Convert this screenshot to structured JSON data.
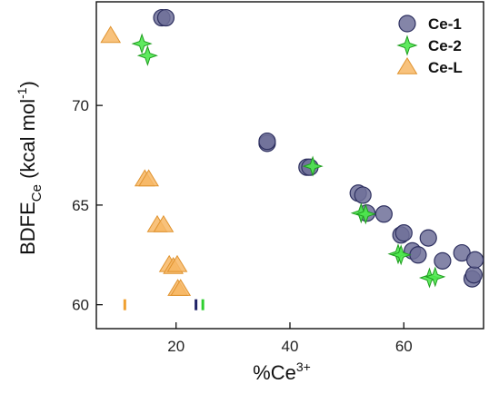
{
  "chart_data": {
    "type": "scatter",
    "xlabel": "%Ce",
    "xlabel_sup": "3+",
    "ylabel": "BDFE",
    "ylabel_sub": "Ce",
    "ylabel_units": " (kcal mol",
    "ylabel_units_sup": "-1",
    "ylabel_units_close": ")",
    "xlim": [
      6,
      74
    ],
    "ylim": [
      58.8,
      75.2
    ],
    "x_ticks": [
      20,
      40,
      60
    ],
    "y_ticks": [
      60,
      65,
      70
    ],
    "x_tick_labels": [
      "20",
      "40",
      "60"
    ],
    "y_tick_labels": [
      "60",
      "65",
      "70"
    ],
    "grid": false,
    "legend_position": "top-right",
    "colors": {
      "ce1_fill": "#6e7099",
      "ce1_stroke": "#2e3060",
      "ce2_fill": "#4ee84e",
      "ce2_stroke": "#1f9e1f",
      "cel_fill": "#f7b765",
      "cel_stroke": "#e0932f",
      "marker_ce1": "#1f2266",
      "marker_ce2": "#2fcf2f",
      "marker_cel": "#f0a030"
    },
    "series": [
      {
        "name": "Ce-1",
        "marker": "circle",
        "x": [
          17.5,
          18.2,
          36.0,
          36.0,
          43.0,
          43.5,
          52.0,
          52.8,
          53.5,
          56.5,
          59.5,
          60.0,
          61.5,
          62.5,
          64.3,
          66.8,
          70.2,
          72.0,
          72.3,
          72.5
        ],
        "y": [
          74.4,
          74.4,
          68.1,
          68.2,
          66.9,
          66.9,
          65.6,
          65.5,
          64.6,
          64.55,
          63.5,
          63.6,
          62.7,
          62.5,
          63.35,
          62.2,
          62.6,
          61.3,
          61.5,
          62.25
        ]
      },
      {
        "name": "Ce-2",
        "marker": "star",
        "x": [
          14.0,
          15.0,
          44.0,
          52.5,
          53.3,
          59.0,
          59.5,
          64.5,
          65.5
        ],
        "y": [
          73.1,
          72.5,
          66.95,
          64.6,
          64.55,
          62.55,
          62.5,
          61.35,
          61.4
        ]
      },
      {
        "name": "Ce-L",
        "marker": "triangle",
        "x": [
          8.5,
          14.5,
          15.2,
          16.7,
          17.8,
          18.8,
          19.5,
          20.2,
          20.3,
          20.8
        ],
        "y": [
          73.5,
          66.3,
          66.3,
          64.0,
          64.0,
          62.0,
          61.9,
          62.0,
          60.8,
          60.8
        ]
      }
    ],
    "reference_marks": [
      {
        "series": "Ce-L",
        "x": 11.0,
        "y": 60.0
      },
      {
        "series": "Ce-1",
        "x": 23.5,
        "y": 60.0
      },
      {
        "series": "Ce-2",
        "x": 24.7,
        "y": 60.0
      }
    ]
  }
}
